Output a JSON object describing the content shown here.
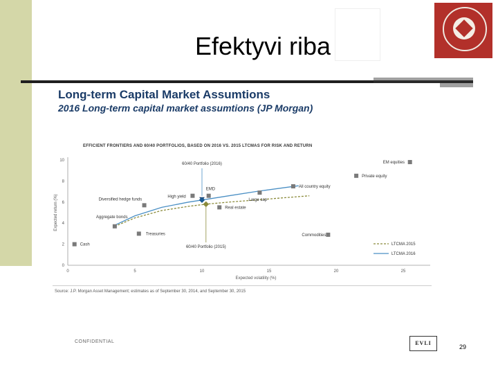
{
  "slide": {
    "title": "Efektyvi riba",
    "heading": "Long-term Capital Market Assumtions",
    "subheading": "2016 Long-term capital market assumtions (JP Morgan)",
    "confidential": "CONFIDENTIAL",
    "brand": "EVLI",
    "page_number": "29",
    "colors": {
      "sidebar": "#d4d7a8",
      "logo": "#b2302a",
      "heading": "#1a3b67"
    }
  },
  "chart_data": {
    "type": "scatter",
    "title": "EFFICIENT FRONTIERS AND 60/40 PORTFOLIOS, BASED ON 2016 VS. 2015 LTCMAS FOR RISK AND RETURN",
    "xlabel": "Expected volatility (%)",
    "ylabel": "Expected return (%)",
    "xlim": [
      0,
      25
    ],
    "ylim": [
      0,
      10
    ],
    "xticks": [
      "0",
      "5",
      "10",
      "15",
      "20",
      "25"
    ],
    "yticks": [
      "0",
      "2",
      "4",
      "6",
      "8",
      "10"
    ],
    "source": "Source: J.P. Morgan Asset Management; estimates as of September 30, 2014, and September 30, 2015",
    "points": [
      {
        "label": "Cash",
        "x": 0.5,
        "y": 2.0
      },
      {
        "label": "Aggregate bonds",
        "x": 3.5,
        "y": 3.7
      },
      {
        "label": "Treasuries",
        "x": 5.3,
        "y": 3.0
      },
      {
        "label": "Diversified hedge funds",
        "x": 5.7,
        "y": 5.7
      },
      {
        "label": "High yield",
        "x": 9.3,
        "y": 6.6
      },
      {
        "label": "EMD",
        "x": 10.5,
        "y": 6.6
      },
      {
        "label": "Real estate",
        "x": 11.3,
        "y": 5.5
      },
      {
        "label": "Large cap",
        "x": 14.3,
        "y": 6.9
      },
      {
        "label": "All country equity",
        "x": 16.8,
        "y": 7.5
      },
      {
        "label": "Commodities",
        "x": 19.4,
        "y": 2.9
      },
      {
        "label": "Private equity",
        "x": 21.5,
        "y": 8.5
      },
      {
        "label": "EM equities",
        "x": 25.5,
        "y": 9.8
      }
    ],
    "annotations": [
      {
        "label": "60/40 Portfolio (2016)",
        "x": 10,
        "y": 6.2
      },
      {
        "label": "60/40 Portfolio (2015)",
        "x": 10.3,
        "y": 5.8
      }
    ],
    "series": [
      {
        "name": "LTCMA 2015",
        "color": "#8a8a3a",
        "style": "dashed",
        "x": [
          3.5,
          5,
          7,
          9,
          10.3,
          12,
          14,
          16,
          18
        ],
        "y": [
          3.7,
          4.5,
          5.2,
          5.6,
          5.8,
          6.0,
          6.2,
          6.4,
          6.6
        ]
      },
      {
        "name": "LTCMA 2016",
        "color": "#4a8fc4",
        "style": "solid",
        "x": [
          3.5,
          5,
          7,
          9,
          10,
          12,
          14,
          16,
          17.2
        ],
        "y": [
          3.8,
          4.7,
          5.5,
          6.0,
          6.2,
          6.6,
          7.0,
          7.35,
          7.55
        ]
      }
    ],
    "legend_position": "bottom-right",
    "grid": false
  }
}
